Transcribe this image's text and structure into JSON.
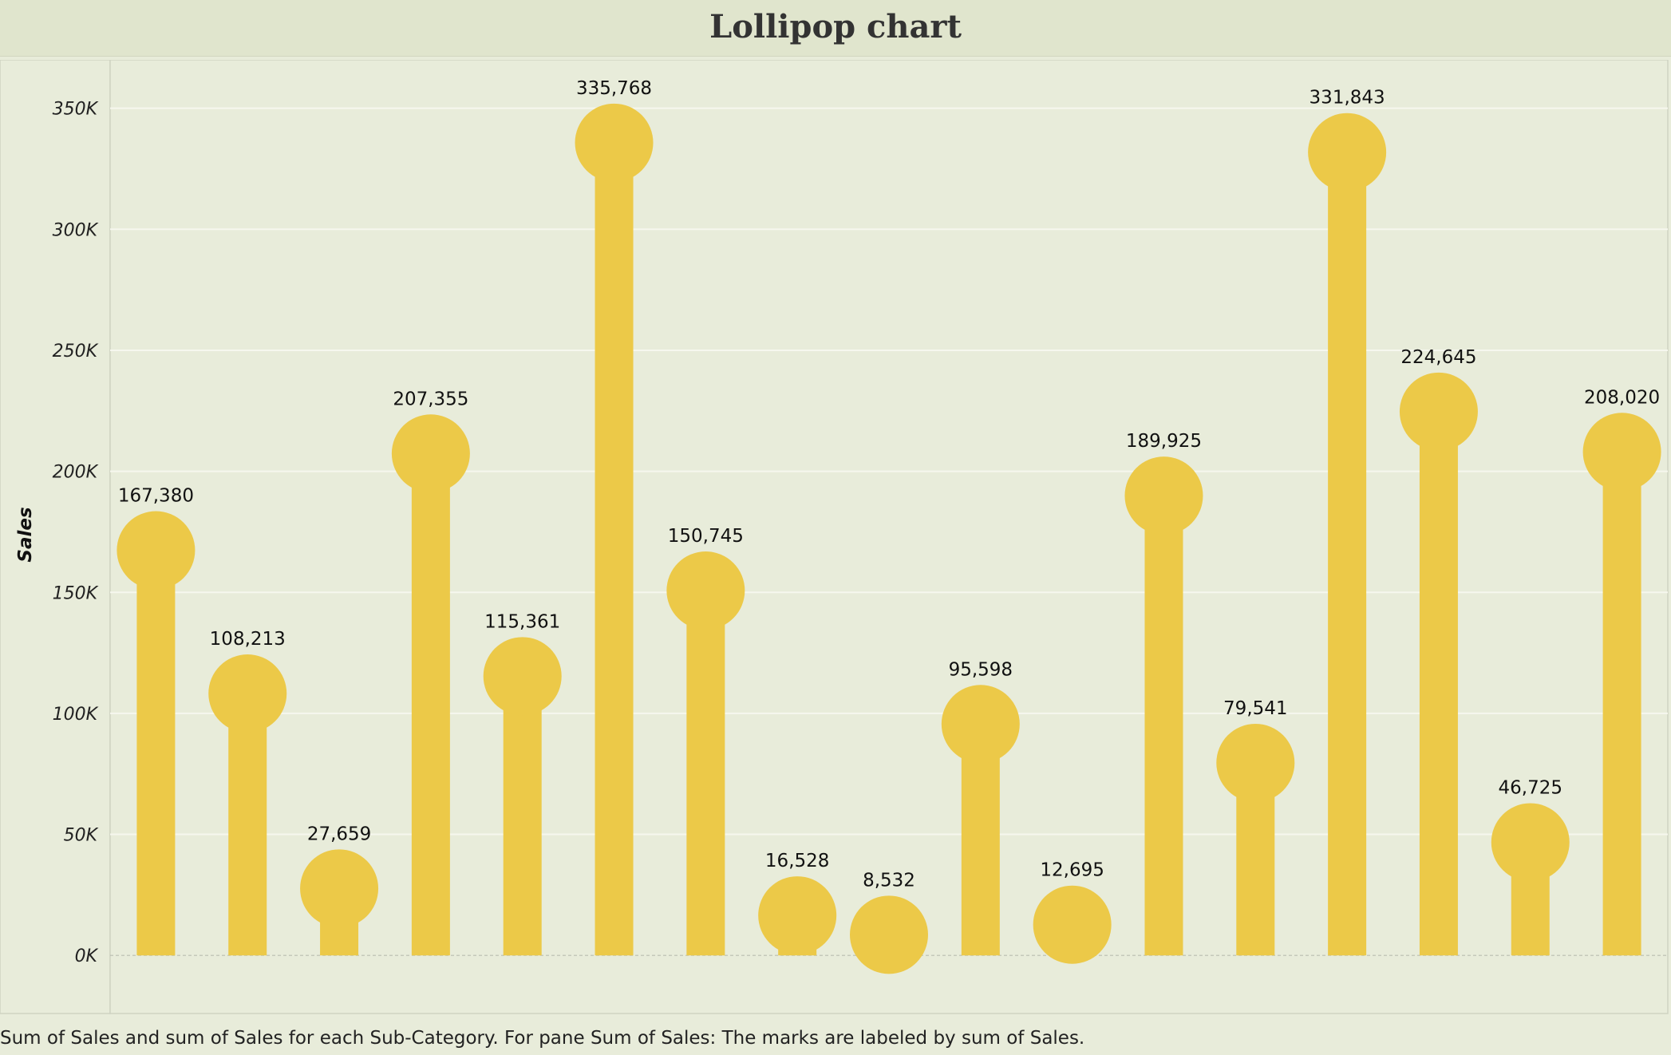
{
  "title": "Lollipop chart",
  "caption": "Sum of Sales and sum of Sales for each Sub-Category.  For pane Sum of Sales:  The marks are labeled by sum of Sales.",
  "colors": {
    "mark": "#ecc948",
    "background": "#e8ecda",
    "gridline": "#f6f7ee",
    "zero_line": "#b9bdb0"
  },
  "chart_data": {
    "type": "bar",
    "subtype": "lollipop",
    "ylabel": "Sales",
    "xlabel": "",
    "ylim": [
      -24000,
      370000
    ],
    "yticks": [
      0,
      50000,
      100000,
      150000,
      200000,
      250000,
      300000,
      350000
    ],
    "ytick_labels": [
      "0K",
      "50K",
      "100K",
      "150K",
      "200K",
      "250K",
      "300K",
      "350K"
    ],
    "grid": true,
    "values": [
      167380,
      108213,
      27659,
      207355,
      115361,
      335768,
      150745,
      16528,
      8532,
      95598,
      12695,
      189925,
      79541,
      331843,
      224645,
      46725,
      208020
    ],
    "labels": [
      "167,380",
      "108,213",
      "27,659",
      "207,355",
      "115,361",
      "335,768",
      "150,745",
      "16,528",
      "8,532",
      "95,598",
      "12,695",
      "189,925",
      "79,541",
      "331,843",
      "224,645",
      "46,725",
      "208,020"
    ]
  }
}
